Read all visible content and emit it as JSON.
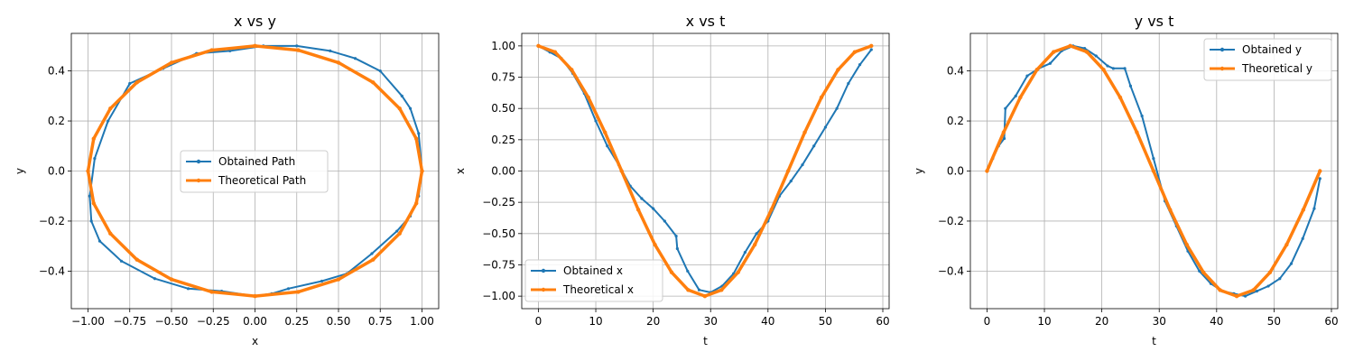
{
  "colors": {
    "obtained": "#1f77b4",
    "theoretical": "#ff7f0e",
    "grid": "#b0b0b0",
    "axes": "#000000"
  },
  "chart_data": [
    {
      "type": "line",
      "title": "x vs y",
      "xlabel": "x",
      "ylabel": "y",
      "xlim": [
        -1.1,
        1.1
      ],
      "ylim": [
        -0.55,
        0.55
      ],
      "xticks": [
        -1.0,
        -0.75,
        -0.5,
        -0.25,
        0.0,
        0.25,
        0.5,
        0.75,
        1.0
      ],
      "xtick_labels": [
        "−1.00",
        "−0.75",
        "−0.50",
        "−0.25",
        "0.00",
        "0.25",
        "0.50",
        "0.75",
        "1.00"
      ],
      "yticks": [
        -0.4,
        -0.2,
        0.0,
        0.2,
        0.4
      ],
      "ytick_labels": [
        "−0.4",
        "−0.2",
        "0.0",
        "0.2",
        "0.4"
      ],
      "grid": true,
      "legend": {
        "position": "center",
        "entries": [
          "Obtained Path",
          "Theoretical Path"
        ]
      },
      "series": [
        {
          "name": "Obtained Path",
          "color": "obtained",
          "x": [
            1.0,
            0.98,
            0.93,
            0.88,
            0.75,
            0.6,
            0.45,
            0.25,
            0.05,
            -0.15,
            -0.35,
            -0.55,
            -0.75,
            -0.88,
            -0.96,
            -0.99,
            -0.98,
            -0.93,
            -0.8,
            -0.6,
            -0.4,
            -0.2,
            0.0,
            0.1,
            0.2,
            0.4,
            0.55,
            0.7,
            0.85,
            0.93,
            0.98,
            1.0
          ],
          "y": [
            0.0,
            0.15,
            0.25,
            0.3,
            0.4,
            0.45,
            0.48,
            0.5,
            0.5,
            0.48,
            0.47,
            0.41,
            0.35,
            0.2,
            0.05,
            -0.1,
            -0.2,
            -0.28,
            -0.36,
            -0.43,
            -0.47,
            -0.48,
            -0.5,
            -0.49,
            -0.47,
            -0.44,
            -0.41,
            -0.33,
            -0.24,
            -0.18,
            -0.1,
            0.0
          ]
        },
        {
          "name": "Theoretical Path",
          "color": "theoretical",
          "x": [
            1.0,
            0.966,
            0.866,
            0.707,
            0.5,
            0.259,
            0.0,
            -0.259,
            -0.5,
            -0.707,
            -0.866,
            -0.966,
            -1.0,
            -0.966,
            -0.866,
            -0.707,
            -0.5,
            -0.259,
            0.0,
            0.259,
            0.5,
            0.707,
            0.866,
            0.966,
            1.0
          ],
          "y": [
            0.0,
            0.129,
            0.25,
            0.354,
            0.433,
            0.483,
            0.5,
            0.483,
            0.433,
            0.354,
            0.25,
            0.129,
            0.0,
            -0.129,
            -0.25,
            -0.354,
            -0.433,
            -0.483,
            -0.5,
            -0.483,
            -0.433,
            -0.354,
            -0.25,
            -0.129,
            0.0
          ]
        }
      ]
    },
    {
      "type": "line",
      "title": "x vs t",
      "xlabel": "t",
      "ylabel": "x",
      "xlim": [
        -2.9,
        61.1
      ],
      "ylim": [
        -1.1,
        1.1
      ],
      "xticks": [
        0,
        10,
        20,
        30,
        40,
        50,
        60
      ],
      "xtick_labels": [
        "0",
        "10",
        "20",
        "30",
        "40",
        "50",
        "60"
      ],
      "yticks": [
        -1.0,
        -0.75,
        -0.5,
        -0.25,
        0.0,
        0.25,
        0.5,
        0.75,
        1.0
      ],
      "ytick_labels": [
        "−1.00",
        "−0.75",
        "−0.50",
        "−0.25",
        "0.00",
        "0.25",
        "0.50",
        "0.75",
        "1.00"
      ],
      "grid": true,
      "legend": {
        "position": "lower left",
        "entries": [
          "Obtained x",
          "Theoretical x"
        ]
      },
      "series": [
        {
          "name": "Obtained x",
          "color": "obtained",
          "x": [
            0,
            2,
            4,
            6,
            8,
            10,
            12,
            14,
            16,
            18,
            20,
            22,
            24,
            24.2,
            26,
            28,
            30,
            32,
            34,
            36,
            38,
            40,
            42,
            44,
            46,
            48,
            50,
            52,
            54,
            56,
            58
          ],
          "y": [
            1.0,
            0.95,
            0.9,
            0.78,
            0.62,
            0.4,
            0.2,
            0.05,
            -0.12,
            -0.22,
            -0.3,
            -0.4,
            -0.52,
            -0.62,
            -0.8,
            -0.95,
            -0.97,
            -0.92,
            -0.82,
            -0.65,
            -0.5,
            -0.4,
            -0.2,
            -0.08,
            0.05,
            0.2,
            0.35,
            0.5,
            0.7,
            0.85,
            0.97
          ]
        },
        {
          "name": "Theoretical x",
          "color": "theoretical",
          "x": [
            0,
            2.9,
            5.8,
            8.7,
            11.6,
            14.5,
            17.4,
            20.3,
            23.2,
            26.1,
            29.0,
            31.9,
            34.8,
            37.7,
            40.6,
            43.5,
            46.4,
            49.3,
            52.2,
            55.1,
            58.0
          ],
          "y": [
            1.0,
            0.951,
            0.809,
            0.588,
            0.309,
            0.0,
            -0.309,
            -0.588,
            -0.809,
            -0.951,
            -1.0,
            -0.951,
            -0.809,
            -0.588,
            -0.309,
            0.0,
            0.309,
            0.588,
            0.809,
            0.951,
            1.0
          ]
        }
      ]
    },
    {
      "type": "line",
      "title": "y vs t",
      "xlabel": "t",
      "ylabel": "y",
      "xlim": [
        -2.9,
        61.1
      ],
      "ylim": [
        -0.55,
        0.55
      ],
      "xticks": [
        0,
        10,
        20,
        30,
        40,
        50,
        60
      ],
      "xtick_labels": [
        "0",
        "10",
        "20",
        "30",
        "40",
        "50",
        "60"
      ],
      "yticks": [
        -0.4,
        -0.2,
        0.0,
        0.2,
        0.4
      ],
      "ytick_labels": [
        "−0.4",
        "−0.2",
        "0.0",
        "0.2",
        "0.4"
      ],
      "grid": true,
      "legend": {
        "position": "upper right",
        "entries": [
          "Obtained y",
          "Theoretical y"
        ]
      },
      "series": [
        {
          "name": "Obtained y",
          "color": "obtained",
          "x": [
            0,
            1,
            2,
            3,
            3.2,
            5,
            7,
            9,
            11,
            13,
            15,
            17,
            19,
            21,
            22,
            24,
            25,
            27,
            29,
            31,
            33,
            35,
            37,
            39,
            41,
            43,
            45,
            47,
            49,
            51,
            53,
            55,
            57,
            58
          ],
          "y": [
            0.0,
            0.05,
            0.1,
            0.13,
            0.25,
            0.3,
            0.38,
            0.41,
            0.43,
            0.48,
            0.5,
            0.49,
            0.46,
            0.42,
            0.41,
            0.41,
            0.34,
            0.22,
            0.05,
            -0.12,
            -0.22,
            -0.32,
            -0.4,
            -0.45,
            -0.48,
            -0.49,
            -0.5,
            -0.48,
            -0.46,
            -0.43,
            -0.37,
            -0.27,
            -0.15,
            -0.03
          ]
        },
        {
          "name": "Theoretical y",
          "color": "theoretical",
          "x": [
            0,
            2.9,
            5.8,
            8.7,
            11.6,
            14.5,
            17.4,
            20.3,
            23.2,
            26.1,
            29.0,
            31.9,
            34.8,
            37.7,
            40.6,
            43.5,
            46.4,
            49.3,
            52.2,
            55.1,
            58.0
          ],
          "y": [
            0.0,
            0.155,
            0.294,
            0.405,
            0.476,
            0.5,
            0.476,
            0.405,
            0.294,
            0.155,
            0.0,
            -0.155,
            -0.294,
            -0.405,
            -0.476,
            -0.5,
            -0.476,
            -0.405,
            -0.294,
            -0.155,
            0.0
          ]
        }
      ]
    }
  ]
}
